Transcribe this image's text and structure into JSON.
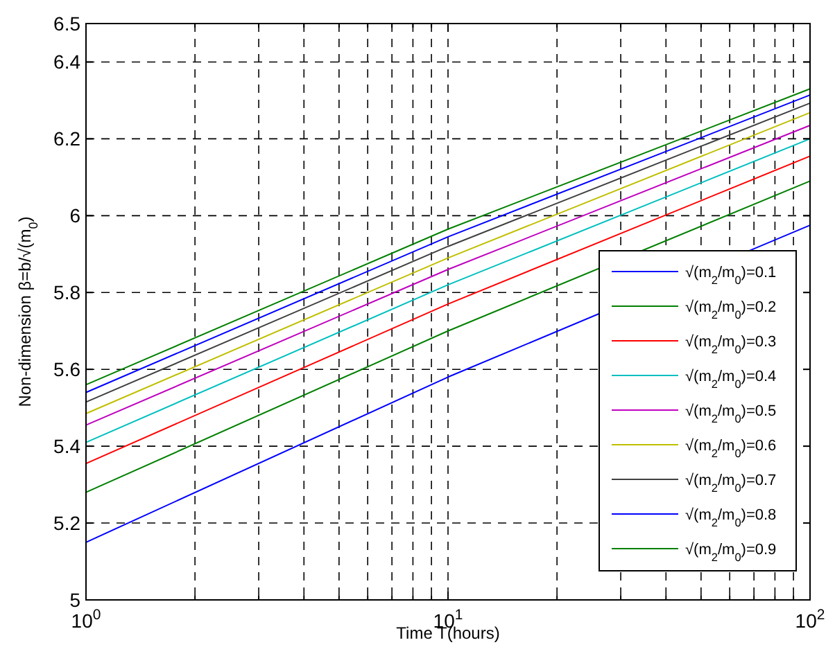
{
  "chart_data": {
    "type": "line",
    "xlabel": "Time T(hours)",
    "ylabel": "Non-dimension β=b/√(m$_{0}$)",
    "log": "x",
    "grid": true,
    "legend": "bottom right",
    "line_style": "solid",
    "xlim": [
      1,
      100
    ],
    "ylim": [
      5,
      6.5
    ],
    "xticks": [
      {
        "value": 1,
        "label": "10$^{0}$"
      },
      {
        "value": 2,
        "label": null
      },
      {
        "value": 3,
        "label": null
      },
      {
        "value": 4,
        "label": null
      },
      {
        "value": 5,
        "label": null
      },
      {
        "value": 6,
        "label": null
      },
      {
        "value": 7,
        "label": null
      },
      {
        "value": 8,
        "label": null
      },
      {
        "value": 9,
        "label": null
      },
      {
        "value": 10,
        "label": "10$^{1}$"
      },
      {
        "value": 20,
        "label": null
      },
      {
        "value": 30,
        "label": null
      },
      {
        "value": 40,
        "label": null
      },
      {
        "value": 50,
        "label": null
      },
      {
        "value": 60,
        "label": null
      },
      {
        "value": 70,
        "label": null
      },
      {
        "value": 80,
        "label": null
      },
      {
        "value": 90,
        "label": null
      },
      {
        "value": 100,
        "label": "10$^{2}$"
      }
    ],
    "yticks": [
      5,
      5.2,
      5.4,
      5.6,
      5.8,
      6,
      6.2,
      6.4,
      6.5
    ],
    "x": [
      1,
      10,
      100
    ],
    "series": [
      {
        "name": "√(m$_{2}$/m$_{0}$)=0.1",
        "color": "#0000ff",
        "values": [
          5.15,
          5.58,
          5.975
        ]
      },
      {
        "name": "√(m$_{2}$/m$_{0}$)=0.2",
        "color": "#008000",
        "values": [
          5.28,
          5.7,
          6.09
        ]
      },
      {
        "name": "√(m$_{2}$/m$_{0}$)=0.3",
        "color": "#ff0000",
        "values": [
          5.355,
          5.77,
          6.155
        ]
      },
      {
        "name": "√(m$_{2}$/m$_{0}$)=0.4",
        "color": "#00bfbf",
        "values": [
          5.41,
          5.82,
          6.2
        ]
      },
      {
        "name": "√(m$_{2}$/m$_{0}$)=0.5",
        "color": "#bf00bf",
        "values": [
          5.455,
          5.86,
          6.235
        ]
      },
      {
        "name": "√(m$_{2}$/m$_{0}$)=0.6",
        "color": "#bfbf00",
        "values": [
          5.485,
          5.89,
          6.268
        ]
      },
      {
        "name": "√(m$_{2}$/m$_{0}$)=0.7",
        "color": "#404040",
        "values": [
          5.515,
          5.92,
          6.293
        ]
      },
      {
        "name": "√(m$_{2}$/m$_{0}$)=0.8",
        "color": "#0000ff",
        "values": [
          5.54,
          5.945,
          6.314
        ]
      },
      {
        "name": "√(m$_{2}$/m$_{0}$)=0.9",
        "color": "#008000",
        "values": [
          5.56,
          5.965,
          6.33
        ]
      }
    ]
  }
}
